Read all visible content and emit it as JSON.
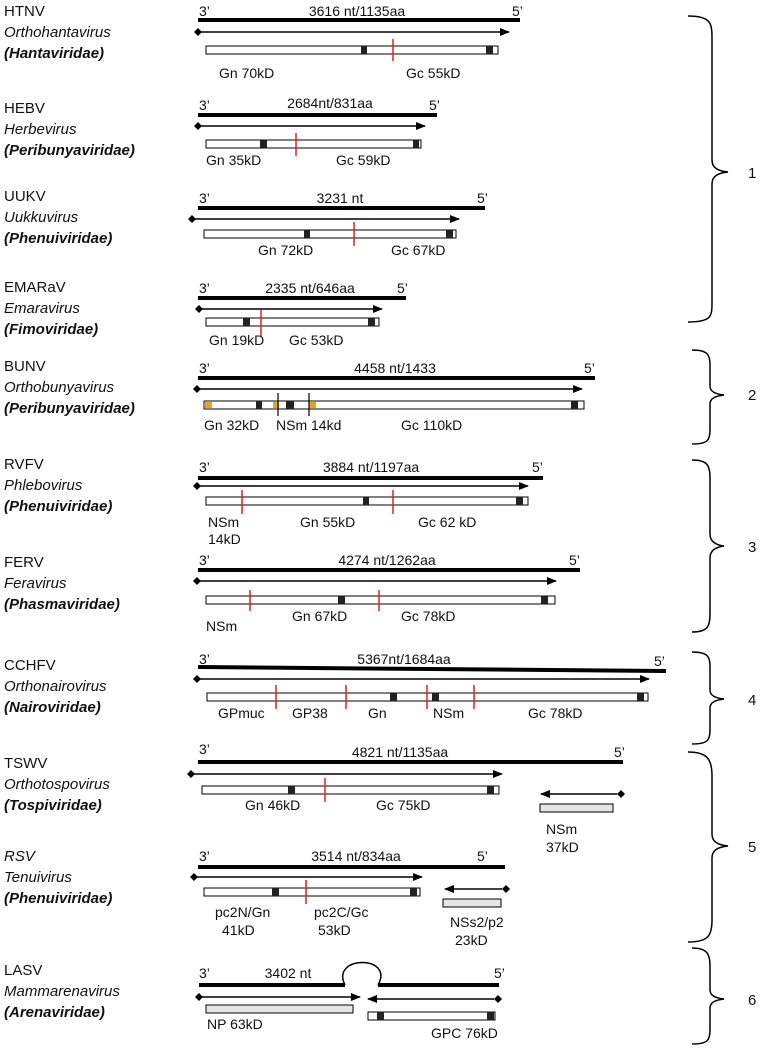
{
  "colors": {
    "rna": "#000000",
    "cleavage": "#e0201b",
    "signal": "#e8a317",
    "tm": "#222222",
    "orf_fill": "#ffffff",
    "nsm_fill": "#e6e6e6"
  },
  "viruses": [
    {
      "abbr": "HTNV",
      "genus": "Orthohantavirus",
      "family": "(Hantaviridae)",
      "end3": "3’",
      "end5": "5’",
      "length": "3616 nt/1135aa",
      "proteins": [
        {
          "label": "Gn 70kD"
        },
        {
          "label": "Gc 55kD"
        }
      ]
    },
    {
      "abbr": "HEBV",
      "genus": "Herbevirus",
      "family": "(Peribunyaviridae)",
      "end3": "3’",
      "end5": "5’",
      "length": "2684nt/831aa",
      "proteins": [
        {
          "label": "Gn 35kD"
        },
        {
          "label": "Gc 59kD"
        }
      ]
    },
    {
      "abbr": "UUKV",
      "genus": "Uukkuvirus",
      "family": "(Phenuiviridae)",
      "end3": "3’",
      "end5": "5’",
      "length": "3231 nt",
      "proteins": [
        {
          "label": "Gn 72kD"
        },
        {
          "label": "Gc 67kD"
        }
      ]
    },
    {
      "abbr": "EMARaV",
      "genus": "Emaravirus",
      "family": "(Fimoviridae)",
      "end3": "3’",
      "end5": "5’",
      "length": "2335 nt/646aa",
      "proteins": [
        {
          "label": "Gn 19kD"
        },
        {
          "label": "Gc 53kD"
        }
      ]
    },
    {
      "abbr": "BUNV",
      "genus": "Orthobunyavirus",
      "family": "(Peribunyaviridae)",
      "end3": "3’",
      "end5": "5’",
      "length": "4458 nt/1433",
      "proteins": [
        {
          "label": "Gn 32kD"
        },
        {
          "label": "NSm 14kd"
        },
        {
          "label": "Gc 110kD"
        }
      ]
    },
    {
      "abbr": "RVFV",
      "genus": "Phlebovirus",
      "family": "(Phenuiviridae)",
      "end3": "3’",
      "end5": "5’",
      "length": "3884 nt/1197aa",
      "proteins": [
        {
          "label": "NSm"
        },
        {
          "label": "14kD"
        },
        {
          "label": "Gn 55kD"
        },
        {
          "label": "Gc 62 kD"
        }
      ]
    },
    {
      "abbr": "FERV",
      "genus": "Feravirus",
      "family": "(Phasmaviridae)",
      "end3": "3’",
      "end5": "5’",
      "length": "4274 nt/1262aa",
      "proteins": [
        {
          "label": "NSm"
        },
        {
          "label": "Gn 67kD"
        },
        {
          "label": "Gc 78kD"
        }
      ]
    },
    {
      "abbr": "CCHFV",
      "genus": "Orthonairovirus",
      "family": "(Nairoviridae)",
      "end3": "3’",
      "end5": "5’",
      "length": "5367nt/1684aa",
      "proteins": [
        {
          "label": "GPmuc"
        },
        {
          "label": "GP38"
        },
        {
          "label": "Gn"
        },
        {
          "label": "NSm"
        },
        {
          "label": "Gc 78kD"
        }
      ]
    },
    {
      "abbr": "TSWV",
      "genus": "Orthotospovirus",
      "family": "(Tospiviridae)",
      "end3": "3’",
      "end5": "5’",
      "length": "4821 nt/1135aa",
      "proteins": [
        {
          "label": "Gn 46kD"
        },
        {
          "label": "Gc 75kD"
        },
        {
          "label": "NSm"
        },
        {
          "label": "37kD"
        }
      ]
    },
    {
      "abbr": "RSV",
      "genus": "Tenuivirus",
      "family": "(Phenuiviridae)",
      "end3": "3’",
      "end5": "5’",
      "length": "3514 nt/834aa",
      "proteins": [
        {
          "label": "pc2N/Gn"
        },
        {
          "label": "41kD"
        },
        {
          "label": "pc2C/Gc"
        },
        {
          "label": "53kD"
        },
        {
          "label": "NSs2/p2"
        },
        {
          "label": "23kD"
        }
      ]
    },
    {
      "abbr": "LASV",
      "genus": "Mammarenavirus",
      "family": "(Arenaviridae)",
      "end3": "3’",
      "end5": "5’",
      "length": "3402 nt",
      "proteins": [
        {
          "label": "NP 63kD"
        },
        {
          "label": "GPC 76kD"
        }
      ]
    }
  ],
  "groups": [
    {
      "label": "1"
    },
    {
      "label": "2"
    },
    {
      "label": "3"
    },
    {
      "label": "4"
    },
    {
      "label": "5"
    },
    {
      "label": "6"
    }
  ]
}
